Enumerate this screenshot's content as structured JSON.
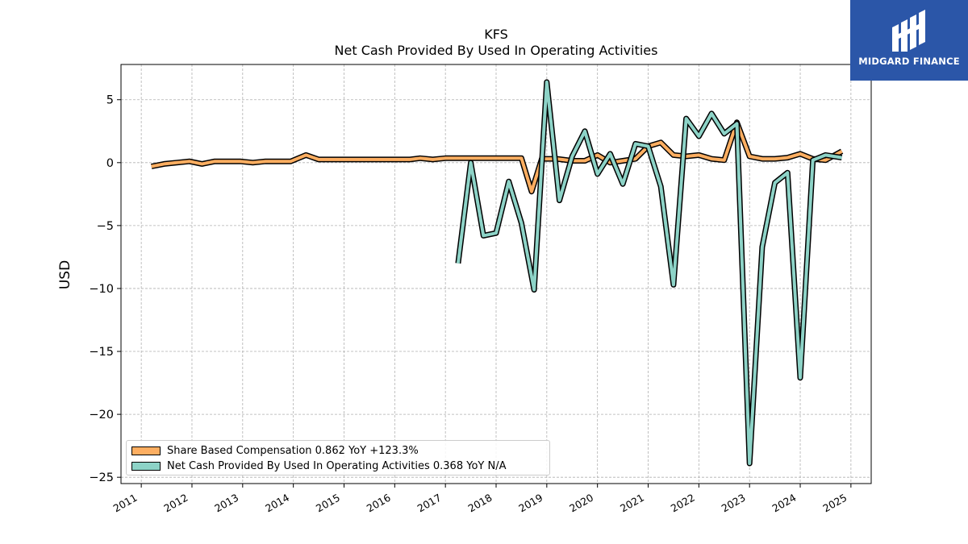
{
  "brand": {
    "name": "MIDGARD FINANCE",
    "color": "#2b56a8"
  },
  "chart_data": {
    "type": "line",
    "title": "KFS",
    "subtitle": "Net Cash Provided By Used In Operating Activities",
    "xlabel": "",
    "ylabel": "USD",
    "xlim": [
      2010.6,
      2025.4
    ],
    "ylim": [
      -25.5,
      7.8
    ],
    "x_ticks": [
      "2011",
      "2012",
      "2013",
      "2014",
      "2015",
      "2016",
      "2017",
      "2018",
      "2019",
      "2020",
      "2021",
      "2022",
      "2023",
      "2024",
      "2025"
    ],
    "y_ticks": [
      5,
      0,
      -5,
      -10,
      -15,
      -20,
      -25
    ],
    "y_tick_labels": [
      "5",
      "0",
      "−5",
      "−10",
      "−15",
      "−20",
      "−25"
    ],
    "grid": true,
    "legend_position": "lower-left",
    "series": [
      {
        "name": "Share Based Compensation",
        "legend_label": "Share Based Compensation  0.862 YoY +123.3%",
        "color": "#fdae61",
        "points": [
          [
            2011.2,
            -0.3
          ],
          [
            2011.45,
            -0.1
          ],
          [
            2011.7,
            0.0
          ],
          [
            2011.95,
            0.1
          ],
          [
            2012.2,
            -0.1
          ],
          [
            2012.45,
            0.1
          ],
          [
            2012.7,
            0.1
          ],
          [
            2012.95,
            0.1
          ],
          [
            2013.2,
            0.0
          ],
          [
            2013.45,
            0.1
          ],
          [
            2013.7,
            0.1
          ],
          [
            2013.95,
            0.1
          ],
          [
            2014.25,
            0.6
          ],
          [
            2014.5,
            0.25
          ],
          [
            2014.75,
            0.25
          ],
          [
            2015.0,
            0.25
          ],
          [
            2015.5,
            0.25
          ],
          [
            2016.0,
            0.25
          ],
          [
            2016.3,
            0.25
          ],
          [
            2016.5,
            0.35
          ],
          [
            2016.75,
            0.25
          ],
          [
            2017.0,
            0.35
          ],
          [
            2017.5,
            0.35
          ],
          [
            2018.0,
            0.35
          ],
          [
            2018.5,
            0.35
          ],
          [
            2018.7,
            -2.3
          ],
          [
            2018.9,
            0.3
          ],
          [
            2019.2,
            0.3
          ],
          [
            2019.5,
            0.15
          ],
          [
            2019.75,
            0.15
          ],
          [
            2020.0,
            0.6
          ],
          [
            2020.25,
            0.0
          ],
          [
            2020.5,
            0.15
          ],
          [
            2020.75,
            0.3
          ],
          [
            2021.0,
            1.3
          ],
          [
            2021.25,
            1.6
          ],
          [
            2021.5,
            0.6
          ],
          [
            2021.75,
            0.5
          ],
          [
            2022.0,
            0.6
          ],
          [
            2022.25,
            0.3
          ],
          [
            2022.5,
            0.2
          ],
          [
            2022.75,
            3.2
          ],
          [
            2023.0,
            0.5
          ],
          [
            2023.25,
            0.3
          ],
          [
            2023.5,
            0.3
          ],
          [
            2023.75,
            0.4
          ],
          [
            2024.0,
            0.7
          ],
          [
            2024.25,
            0.3
          ],
          [
            2024.5,
            0.2
          ],
          [
            2024.82,
            0.9
          ]
        ]
      },
      {
        "name": "Net Cash Provided By Used In Operating Activities",
        "legend_label": "Net Cash Provided By Used In Operating Activities  0.368 YoY N/A",
        "color": "#8dd3c7",
        "points": [
          [
            2017.25,
            -8.0
          ],
          [
            2017.5,
            0.0
          ],
          [
            2017.75,
            -5.8
          ],
          [
            2018.0,
            -5.6
          ],
          [
            2018.25,
            -1.5
          ],
          [
            2018.5,
            -4.8
          ],
          [
            2018.75,
            -10.1
          ],
          [
            2019.0,
            6.4
          ],
          [
            2019.25,
            -3.0
          ],
          [
            2019.5,
            0.5
          ],
          [
            2019.75,
            2.5
          ],
          [
            2020.0,
            -0.9
          ],
          [
            2020.25,
            0.7
          ],
          [
            2020.5,
            -1.7
          ],
          [
            2020.75,
            1.5
          ],
          [
            2021.0,
            1.3
          ],
          [
            2021.25,
            -1.9
          ],
          [
            2021.5,
            -9.7
          ],
          [
            2021.75,
            3.5
          ],
          [
            2022.0,
            2.1
          ],
          [
            2022.25,
            3.9
          ],
          [
            2022.5,
            2.3
          ],
          [
            2022.75,
            3.1
          ],
          [
            2023.0,
            -23.9
          ],
          [
            2023.25,
            -6.7
          ],
          [
            2023.5,
            -1.6
          ],
          [
            2023.75,
            -0.8
          ],
          [
            2024.0,
            -17.1
          ],
          [
            2024.25,
            0.2
          ],
          [
            2024.5,
            0.6
          ],
          [
            2024.82,
            0.4
          ]
        ]
      }
    ]
  }
}
